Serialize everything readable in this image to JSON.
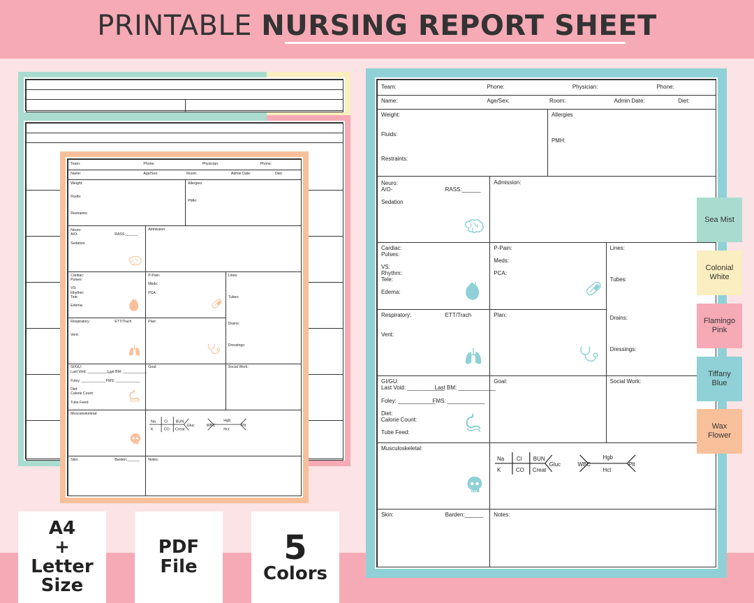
{
  "banner": {
    "title_light": "PRINTABLE ",
    "title_bold": "NURSING REPORT SHEET"
  },
  "colors": {
    "banner": "#f6aab5",
    "sea_mist": "#a9dccf",
    "colonial_white": "#fbeec0",
    "flamingo_pink": "#f6aab5",
    "tiffany_blue": "#8fd1d6",
    "wax_flower": "#f8c09a"
  },
  "sheet": {
    "team": "Team:",
    "phone": "Phone:",
    "physician": "Physician:",
    "phone2": "Phone:",
    "name": "Name:",
    "age_sex": "Age/Sex:",
    "room": "Room:",
    "admin_date": "Admin Date:",
    "diet": "Diet:",
    "weight": "Weight:",
    "fluids": "Fluids:",
    "restraints": "Restraints:",
    "allergies": "Allergies",
    "pmh": "PMH:",
    "neuro": "Neuro:",
    "ao": "A/O-",
    "rass": "RASS:______",
    "sedation": "Sedation",
    "admission": "Admission:",
    "cardiac": "Cardiac:",
    "pulses": "Pulses:",
    "vs": "VS:",
    "rhythm": "Rhythm:",
    "tele": "Tele:",
    "edema": "Edema:",
    "ppain": "P-Pain:",
    "meds": "Meds:",
    "pca": "PCA:",
    "lines": "Lines:",
    "tubes": "Tubes:",
    "drains": "Drains:",
    "dressings": "Dressings:",
    "respiratory": "Respiratory:",
    "ett": "ETT/Trach",
    "vent": "Vent:",
    "plan": "Plan:",
    "gigu": "GI/GU:",
    "last_void": "Last Void: ____________",
    "last_bm": "Last BM: ____________",
    "foley": "Foley: ____________",
    "fms": "FMS: ____________",
    "diet2": "Diet:",
    "calorie": "Calorie Count:",
    "tube_feed": "Tube Feed:",
    "goal": "Goal:",
    "social_work": "Social Work:",
    "musculo": "Musculoskeletal:",
    "skin": "Skin:",
    "barden": "Barden:______",
    "notes": "Notes:",
    "fb": {
      "na": "Na",
      "cl": "Cl",
      "bun": "BUN",
      "k": "K",
      "co": "CO",
      "creat": "Creat",
      "gluc": "Gluc",
      "wbc": "WBC",
      "hgb": "Hgb",
      "hct": "Hct",
      "plt": "Plt"
    }
  },
  "badges": {
    "size": {
      "l1": "A4",
      "l2": "+",
      "l3": "Letter",
      "l4": "Size"
    },
    "file": {
      "l1": "PDF",
      "l2": "File"
    },
    "colors": {
      "num": "5",
      "word": "Colors"
    }
  },
  "swatches": [
    "Sea Mist",
    "Colonial White",
    "Flamingo Pink",
    "Tiffany Blue",
    "Wax Flower"
  ]
}
